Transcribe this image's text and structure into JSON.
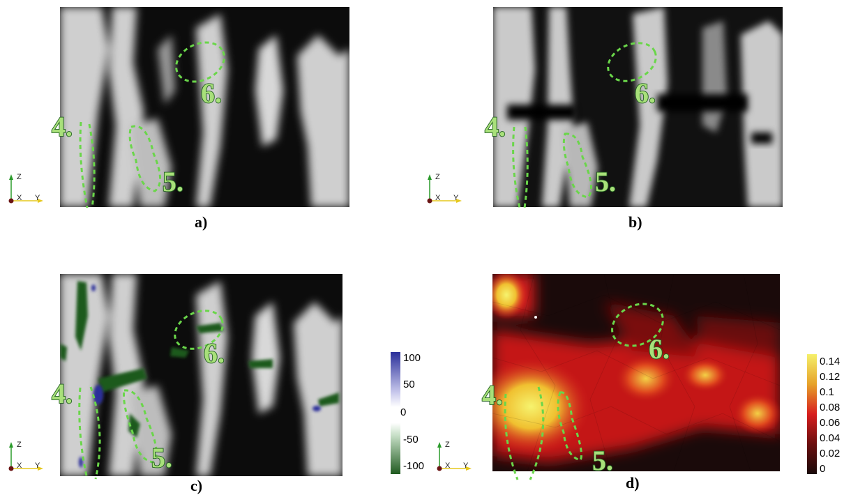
{
  "panels": [
    {
      "caption": "a)"
    },
    {
      "caption": "b)"
    },
    {
      "caption": "c)"
    },
    {
      "caption": "d)"
    }
  ],
  "markers": {
    "m4": "4.",
    "m5": "5.",
    "m6": "6."
  },
  "axes": {
    "z": "Z",
    "x": "X",
    "y": "Y"
  },
  "colorbar_c": {
    "ticks": [
      "100",
      "50",
      "0",
      "-50",
      "-100"
    ],
    "colors": {
      "positive": "#2a2f9a",
      "negative": "#1f5a1f",
      "zero": "#ffffff"
    }
  },
  "colorbar_d": {
    "ticks": [
      "0.14",
      "0.12",
      "0.1",
      "0.08",
      "0.06",
      "0.04",
      "0.02",
      "0"
    ],
    "colors": {
      "high": "#f5f06a",
      "mid": "#d81e1e",
      "low": "#1a0a0a"
    }
  },
  "colors": {
    "marker": "#a8e07a",
    "dashed_outline": "#6ad64a"
  }
}
